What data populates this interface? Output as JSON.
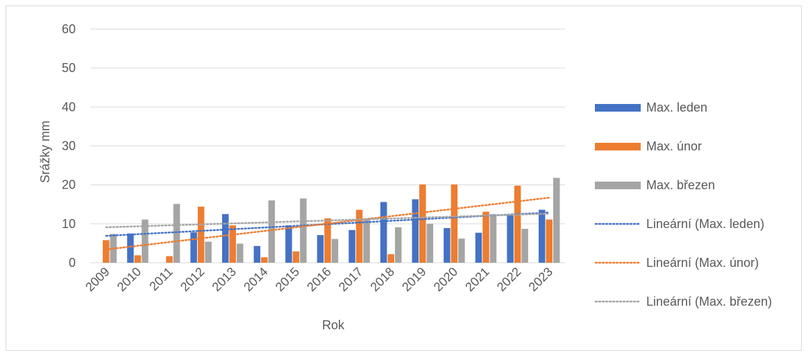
{
  "chart_data": {
    "type": "bar",
    "title": "",
    "xlabel": "Rok",
    "ylabel": "Srážky mm",
    "ylim": [
      0,
      60
    ],
    "yticks": [
      0,
      10,
      20,
      30,
      40,
      50,
      60
    ],
    "grid": true,
    "legend_position": "right",
    "categories": [
      "2009",
      "2010",
      "2011",
      "2012",
      "2013",
      "2014",
      "2015",
      "2016",
      "2017",
      "2018",
      "2019",
      "2020",
      "2021",
      "2022",
      "2023"
    ],
    "series": [
      {
        "name": "Max. leden",
        "color": "#4472c4",
        "values": [
          0,
          7.5,
          0,
          7.8,
          12.5,
          4.3,
          9.6,
          7.1,
          8.4,
          15.6,
          16.3,
          8.9,
          7.7,
          12.3,
          13.6
        ]
      },
      {
        "name": "Max. únor",
        "color": "#ed7d31",
        "values": [
          5.8,
          1.9,
          1.7,
          14.4,
          9.6,
          1.4,
          2.9,
          11.4,
          13.6,
          2.2,
          20.1,
          20.1,
          13.1,
          19.8,
          11.1
        ]
      },
      {
        "name": "Max. březen",
        "color": "#a5a5a5",
        "values": [
          7.4,
          11.1,
          15.1,
          5.4,
          4.9,
          16.0,
          16.5,
          6.1,
          11.3,
          9.1,
          10.0,
          6.2,
          12.5,
          8.7,
          21.8
        ]
      }
    ],
    "trendlines": [
      {
        "name": "Lineární (Max. leden)",
        "color": "#4472c4",
        "start": 6.9,
        "end": 12.9
      },
      {
        "name": "Lineární (Max. únor)",
        "color": "#ed7d31",
        "start": 3.4,
        "end": 16.7
      },
      {
        "name": "Lineární (Max. březen)",
        "color": "#a5a5a5",
        "start": 9.1,
        "end": 12.6
      }
    ]
  }
}
